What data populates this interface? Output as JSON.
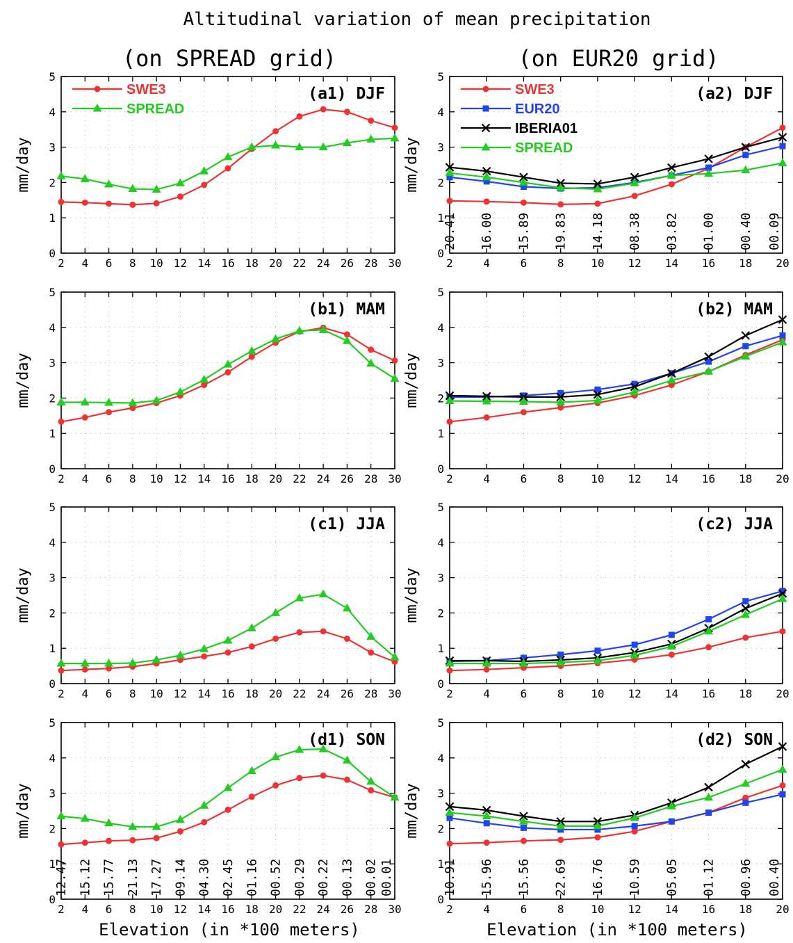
{
  "figure": {
    "title": "Altitudinal variation of mean precipitation",
    "col1_title": "(on SPREAD grid)",
    "col2_title": "(on EUR20 grid)",
    "xlabel": "Elevation (in *100 meters)",
    "ylabel": "mm/day"
  },
  "colors": {
    "SWE3": "#ee3333",
    "SPREAD": "#22cc22",
    "EUR20": "#2244ee",
    "IBERIA01": "#000000"
  },
  "chart_data": [
    {
      "panel": "(a1) DJF",
      "type": "line",
      "x": [
        2,
        4,
        6,
        8,
        10,
        12,
        14,
        16,
        18,
        20,
        22,
        24,
        26,
        28,
        30
      ],
      "xlim": [
        2,
        30
      ],
      "ylim": [
        0,
        5
      ],
      "grid": true,
      "legend": "top-left",
      "series": [
        {
          "name": "SWE3",
          "marker": "circle",
          "values": [
            1.45,
            1.43,
            1.4,
            1.37,
            1.41,
            1.6,
            1.93,
            2.4,
            2.95,
            3.45,
            3.87,
            4.07,
            4.0,
            3.75,
            3.55
          ]
        },
        {
          "name": "SPREAD",
          "marker": "triangle",
          "values": [
            2.18,
            2.1,
            1.95,
            1.82,
            1.8,
            1.98,
            2.32,
            2.72,
            3.0,
            3.05,
            3.0,
            3.0,
            3.12,
            3.22,
            3.25
          ]
        }
      ],
      "annotations": []
    },
    {
      "panel": "(a2) DJF",
      "type": "line",
      "x": [
        2,
        4,
        6,
        8,
        10,
        12,
        14,
        16,
        18,
        20
      ],
      "xlim": [
        2,
        20
      ],
      "ylim": [
        0,
        5
      ],
      "grid": true,
      "legend": "top-left",
      "series": [
        {
          "name": "SWE3",
          "marker": "circle",
          "values": [
            1.48,
            1.46,
            1.43,
            1.38,
            1.4,
            1.62,
            1.95,
            2.4,
            3.0,
            3.55
          ]
        },
        {
          "name": "EUR20",
          "marker": "square",
          "values": [
            2.15,
            2.03,
            1.88,
            1.83,
            1.85,
            2.0,
            2.2,
            2.42,
            2.78,
            3.03
          ]
        },
        {
          "name": "IBERIA01",
          "marker": "cross",
          "values": [
            2.43,
            2.32,
            2.15,
            1.98,
            1.96,
            2.15,
            2.42,
            2.67,
            3.0,
            3.28
          ]
        },
        {
          "name": "SPREAD",
          "marker": "triangle",
          "values": [
            2.27,
            2.15,
            2.0,
            1.85,
            1.81,
            1.98,
            2.2,
            2.25,
            2.35,
            2.55
          ]
        }
      ],
      "annotations": [
        "20.41",
        "16.00",
        "15.89",
        "19.83",
        "14.18",
        "08.38",
        "03.82",
        "01.00",
        "00.40",
        "00.09"
      ]
    },
    {
      "panel": "(b1) MAM",
      "type": "line",
      "x": [
        2,
        4,
        6,
        8,
        10,
        12,
        14,
        16,
        18,
        20,
        22,
        24,
        26,
        28,
        30
      ],
      "xlim": [
        2,
        30
      ],
      "ylim": [
        0,
        5
      ],
      "grid": true,
      "series": [
        {
          "name": "SWE3",
          "marker": "circle",
          "values": [
            1.33,
            1.45,
            1.6,
            1.72,
            1.86,
            2.07,
            2.37,
            2.73,
            3.17,
            3.57,
            3.88,
            3.99,
            3.8,
            3.37,
            3.06
          ]
        },
        {
          "name": "SPREAD",
          "marker": "triangle",
          "values": [
            1.88,
            1.88,
            1.87,
            1.86,
            1.93,
            2.17,
            2.52,
            2.95,
            3.33,
            3.67,
            3.9,
            3.93,
            3.62,
            2.98,
            2.55
          ]
        }
      ],
      "annotations": []
    },
    {
      "panel": "(b2) MAM",
      "type": "line",
      "x": [
        2,
        4,
        6,
        8,
        10,
        12,
        14,
        16,
        18,
        20
      ],
      "xlim": [
        2,
        20
      ],
      "ylim": [
        0,
        5
      ],
      "grid": true,
      "series": [
        {
          "name": "SWE3",
          "marker": "circle",
          "values": [
            1.33,
            1.45,
            1.6,
            1.73,
            1.86,
            2.07,
            2.37,
            2.75,
            3.22,
            3.65
          ]
        },
        {
          "name": "EUR20",
          "marker": "square",
          "values": [
            2.03,
            2.03,
            2.07,
            2.14,
            2.24,
            2.4,
            2.7,
            3.03,
            3.47,
            3.77
          ]
        },
        {
          "name": "IBERIA01",
          "marker": "cross",
          "values": [
            2.07,
            2.05,
            2.03,
            2.03,
            2.1,
            2.32,
            2.7,
            3.17,
            3.77,
            4.22
          ]
        },
        {
          "name": "SPREAD",
          "marker": "triangle",
          "values": [
            1.92,
            1.91,
            1.9,
            1.88,
            1.93,
            2.17,
            2.5,
            2.75,
            3.18,
            3.58
          ]
        }
      ],
      "annotations": []
    },
    {
      "panel": "(c1) JJA",
      "type": "line",
      "x": [
        2,
        4,
        6,
        8,
        10,
        12,
        14,
        16,
        18,
        20,
        22,
        24,
        26,
        28,
        30
      ],
      "xlim": [
        2,
        30
      ],
      "ylim": [
        0,
        5
      ],
      "grid": true,
      "series": [
        {
          "name": "SWE3",
          "marker": "circle",
          "values": [
            0.37,
            0.4,
            0.43,
            0.48,
            0.57,
            0.67,
            0.77,
            0.88,
            1.05,
            1.27,
            1.45,
            1.48,
            1.27,
            0.88,
            0.62
          ]
        },
        {
          "name": "SPREAD",
          "marker": "triangle",
          "values": [
            0.57,
            0.57,
            0.57,
            0.58,
            0.67,
            0.8,
            0.98,
            1.22,
            1.57,
            2.0,
            2.42,
            2.53,
            2.13,
            1.33,
            0.75
          ]
        }
      ],
      "annotations": []
    },
    {
      "panel": "(c2) JJA",
      "type": "line",
      "x": [
        2,
        4,
        6,
        8,
        10,
        12,
        14,
        16,
        18,
        20
      ],
      "xlim": [
        2,
        20
      ],
      "ylim": [
        0,
        5
      ],
      "grid": true,
      "series": [
        {
          "name": "SWE3",
          "marker": "circle",
          "values": [
            0.37,
            0.4,
            0.45,
            0.5,
            0.58,
            0.68,
            0.82,
            1.03,
            1.3,
            1.48
          ]
        },
        {
          "name": "EUR20",
          "marker": "square",
          "values": [
            0.63,
            0.65,
            0.73,
            0.82,
            0.93,
            1.1,
            1.38,
            1.82,
            2.33,
            2.62
          ]
        },
        {
          "name": "IBERIA01",
          "marker": "cross",
          "values": [
            0.65,
            0.65,
            0.63,
            0.67,
            0.73,
            0.88,
            1.12,
            1.57,
            2.13,
            2.55
          ]
        },
        {
          "name": "SPREAD",
          "marker": "triangle",
          "values": [
            0.57,
            0.57,
            0.57,
            0.6,
            0.65,
            0.8,
            1.05,
            1.48,
            1.95,
            2.4
          ]
        }
      ],
      "annotations": []
    },
    {
      "panel": "(d1) SON",
      "type": "line",
      "x": [
        2,
        4,
        6,
        8,
        10,
        12,
        14,
        16,
        18,
        20,
        22,
        24,
        26,
        28,
        30
      ],
      "xlim": [
        2,
        30
      ],
      "ylim": [
        0,
        5
      ],
      "grid": true,
      "series": [
        {
          "name": "SWE3",
          "marker": "circle",
          "values": [
            1.55,
            1.6,
            1.65,
            1.67,
            1.73,
            1.92,
            2.18,
            2.53,
            2.9,
            3.22,
            3.43,
            3.5,
            3.38,
            3.08,
            2.88
          ]
        },
        {
          "name": "SPREAD",
          "marker": "triangle",
          "values": [
            2.35,
            2.28,
            2.15,
            2.05,
            2.05,
            2.25,
            2.65,
            3.15,
            3.63,
            4.02,
            4.23,
            4.25,
            3.93,
            3.33,
            2.88
          ]
        }
      ],
      "annotations": [
        "12.47",
        "15.12",
        "15.77",
        "21.13",
        "17.27",
        "09.14",
        "04.30",
        "02.45",
        "01.16",
        "00.52",
        "00.29",
        "00.22",
        "00.13",
        "00.02",
        "00.01"
      ]
    },
    {
      "panel": "(d2) SON",
      "type": "line",
      "x": [
        2,
        4,
        6,
        8,
        10,
        12,
        14,
        16,
        18,
        20
      ],
      "xlim": [
        2,
        20
      ],
      "ylim": [
        0,
        5
      ],
      "grid": true,
      "series": [
        {
          "name": "SWE3",
          "marker": "circle",
          "values": [
            1.57,
            1.6,
            1.65,
            1.68,
            1.75,
            1.92,
            2.2,
            2.45,
            2.87,
            3.22
          ]
        },
        {
          "name": "EUR20",
          "marker": "square",
          "values": [
            2.3,
            2.15,
            2.02,
            1.97,
            1.97,
            2.07,
            2.2,
            2.45,
            2.73,
            2.97
          ]
        },
        {
          "name": "IBERIA01",
          "marker": "cross",
          "values": [
            2.62,
            2.52,
            2.35,
            2.2,
            2.2,
            2.38,
            2.73,
            3.17,
            3.82,
            4.32
          ]
        },
        {
          "name": "SPREAD",
          "marker": "triangle",
          "values": [
            2.45,
            2.35,
            2.2,
            2.07,
            2.07,
            2.3,
            2.63,
            2.88,
            3.27,
            3.67
          ]
        }
      ],
      "annotations": [
        "10.91",
        "15.96",
        "15.56",
        "22.69",
        "16.76",
        "10.59",
        "05.05",
        "01.12",
        "00.96",
        "00.40"
      ]
    }
  ]
}
